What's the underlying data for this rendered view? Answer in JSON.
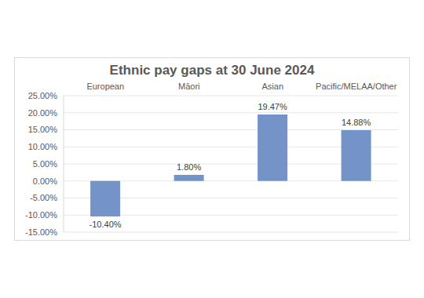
{
  "chart_data": {
    "type": "bar",
    "title": "Ethnic pay gaps at 30 June 2024",
    "categories": [
      "European",
      "Māori",
      "Asian",
      "Pacific/MELAA/Other"
    ],
    "values": [
      -10.4,
      1.8,
      19.47,
      14.88
    ],
    "value_labels": [
      "-10.40%",
      "1.80%",
      "19.47%",
      "14.88%"
    ],
    "data_labels": true,
    "color": "#7393c9",
    "ylim": [
      -15,
      25
    ],
    "yticks": [
      {
        "value": -15,
        "label": "-15.00%"
      },
      {
        "value": -10,
        "label": "-10.00%"
      },
      {
        "value": -5,
        "label": "-5.00%"
      },
      {
        "value": 0,
        "label": "0.00%"
      },
      {
        "value": 5,
        "label": "5.00%"
      },
      {
        "value": 10,
        "label": "10.00%"
      },
      {
        "value": 15,
        "label": "15.00%"
      },
      {
        "value": 20,
        "label": "20.00%"
      },
      {
        "value": 25,
        "label": "25.00%"
      }
    ],
    "grid": true
  }
}
